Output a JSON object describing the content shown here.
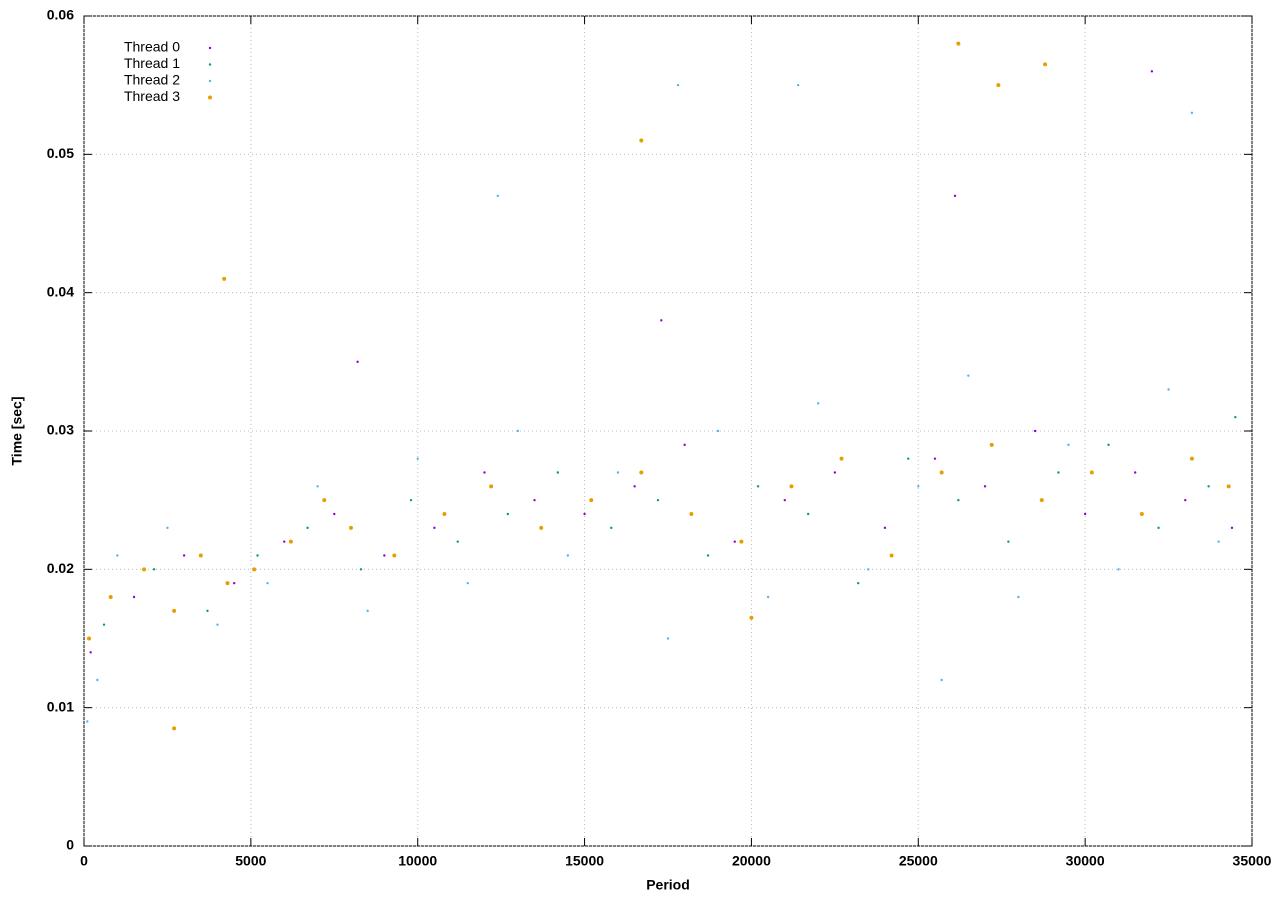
{
  "chart_data": {
    "type": "scatter",
    "xlabel": "Period",
    "ylabel": "Time [sec]",
    "xlim": [
      0,
      35000
    ],
    "xticks": [
      0,
      5000,
      10000,
      15000,
      20000,
      25000,
      30000,
      35000
    ],
    "ylim": [
      0,
      0.06
    ],
    "yticks": [
      0,
      0.01,
      0.02,
      0.03,
      0.04,
      0.05,
      0.06
    ],
    "grid": true,
    "legend": "top-left",
    "series": [
      {
        "name": "Thread 0",
        "color": "#9400d3",
        "x": [
          200,
          1500,
          3000,
          4500,
          6000,
          7500,
          9000,
          10500,
          12000,
          13500,
          15000,
          16500,
          18000,
          19500,
          21000,
          22500,
          24000,
          25500,
          27000,
          28500,
          30000,
          31500,
          33000,
          34400,
          8200,
          17300,
          26100,
          32000
        ],
        "values": [
          0.014,
          0.018,
          0.021,
          0.019,
          0.022,
          0.024,
          0.021,
          0.023,
          0.027,
          0.025,
          0.024,
          0.026,
          0.029,
          0.022,
          0.025,
          0.027,
          0.023,
          0.028,
          0.026,
          0.03,
          0.024,
          0.027,
          0.025,
          0.023,
          0.035,
          0.038,
          0.047,
          0.056
        ]
      },
      {
        "name": "Thread 1",
        "color": "#009e73",
        "x": [
          600,
          2100,
          3700,
          5200,
          6700,
          8300,
          9800,
          11200,
          12700,
          14200,
          15800,
          17200,
          18700,
          20200,
          21700,
          23200,
          24700,
          26200,
          27700,
          29200,
          30700,
          32200,
          33700,
          34500
        ],
        "values": [
          0.016,
          0.02,
          0.017,
          0.021,
          0.023,
          0.02,
          0.025,
          0.022,
          0.024,
          0.027,
          0.023,
          0.025,
          0.021,
          0.026,
          0.024,
          0.019,
          0.028,
          0.025,
          0.022,
          0.027,
          0.029,
          0.023,
          0.026,
          0.031
        ]
      },
      {
        "name": "Thread 2",
        "color": "#56b4e9",
        "x": [
          100,
          400,
          1000,
          2500,
          4000,
          5500,
          7000,
          8500,
          10000,
          11500,
          13000,
          14500,
          16000,
          17500,
          19000,
          20500,
          22000,
          23500,
          25000,
          25700,
          26500,
          28000,
          29500,
          31000,
          32500,
          34000,
          17800,
          21400,
          33200,
          12400
        ],
        "values": [
          0.009,
          0.012,
          0.021,
          0.023,
          0.016,
          0.019,
          0.026,
          0.017,
          0.028,
          0.019,
          0.03,
          0.021,
          0.027,
          0.015,
          0.03,
          0.018,
          0.032,
          0.02,
          0.026,
          0.012,
          0.034,
          0.018,
          0.029,
          0.02,
          0.033,
          0.022,
          0.055,
          0.055,
          0.053,
          0.047
        ]
      },
      {
        "name": "Thread 3",
        "color": "#e69f00",
        "x": [
          150,
          800,
          1800,
          2700,
          3500,
          4300,
          5100,
          6200,
          7200,
          8000,
          9300,
          10800,
          12200,
          13700,
          15200,
          16700,
          18200,
          19700,
          21200,
          22700,
          24200,
          25700,
          27200,
          28700,
          30200,
          31700,
          33200,
          34300,
          2700,
          4200,
          26200,
          27400,
          28800,
          16700,
          20000
        ],
        "values": [
          0.015,
          0.018,
          0.02,
          0.017,
          0.021,
          0.019,
          0.02,
          0.022,
          0.025,
          0.023,
          0.021,
          0.024,
          0.026,
          0.023,
          0.025,
          0.027,
          0.024,
          0.022,
          0.026,
          0.028,
          0.021,
          0.027,
          0.029,
          0.025,
          0.027,
          0.024,
          0.028,
          0.026,
          0.0085,
          0.041,
          0.058,
          0.055,
          0.0565,
          0.051,
          0.0165
        ]
      }
    ]
  }
}
